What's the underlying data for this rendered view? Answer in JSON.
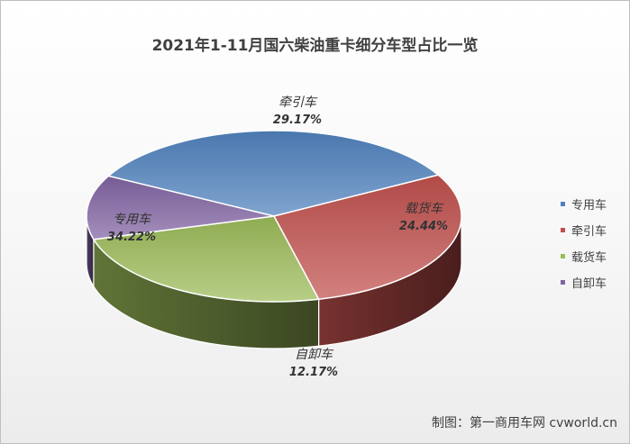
{
  "chart_data": {
    "type": "pie",
    "title": "2021年1-11月国六柴油重卡细分车型占比一览",
    "categories": [
      "专用车",
      "牵引车",
      "载货车",
      "自卸车"
    ],
    "values": [
      34.22,
      29.17,
      24.44,
      12.17
    ],
    "labels": [
      "34.22%",
      "29.17%",
      "24.44%",
      "12.17%"
    ],
    "colors": [
      "#4f81bd",
      "#c0504d",
      "#9bbb59",
      "#8064a2"
    ],
    "legend": "right",
    "style": "3d"
  },
  "credit": "制图：第一商用车网 cvworld.cn"
}
